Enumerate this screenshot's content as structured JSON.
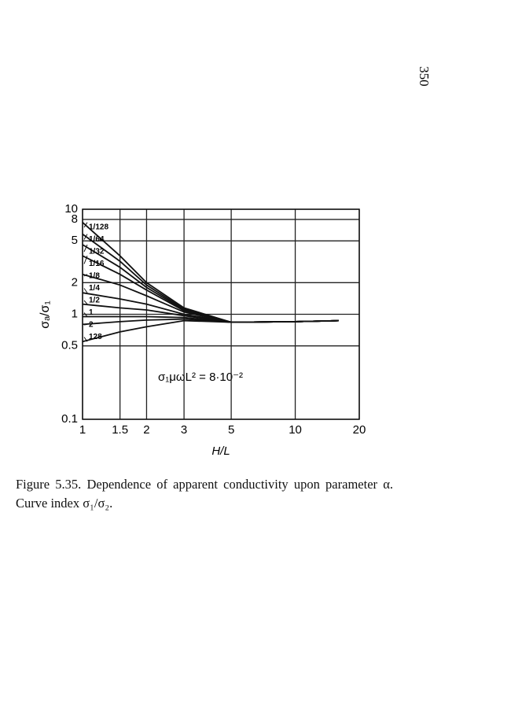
{
  "page_number": "350",
  "caption": "Figure 5.35. Dependence of apparent conductivity upon parameter α. Curve index σ₁/σ₂.",
  "chart_data": {
    "type": "line",
    "annotation": "σ₁μωL² = 8·10⁻²",
    "x_label": "H/L",
    "y_label": "σₐ/σ₁",
    "log_x": true,
    "log_y": true,
    "grid": true,
    "color": "#111111",
    "xlim": [
      1,
      20
    ],
    "ylim": [
      0.1,
      10
    ],
    "xticks": [
      1,
      1.5,
      2,
      3,
      5,
      10,
      20
    ],
    "yticks": [
      0.1,
      0.5,
      1,
      2,
      5,
      8,
      10
    ],
    "x": [
      1,
      1.5,
      2,
      3,
      5,
      10,
      16
    ],
    "series": [
      {
        "name": "1/128",
        "values": [
          7.5,
          3.6,
          2.0,
          1.15,
          0.84,
          0.85,
          0.87
        ]
      },
      {
        "name": "1/64",
        "values": [
          5.8,
          3.2,
          1.9,
          1.12,
          0.84,
          0.85,
          0.87
        ]
      },
      {
        "name": "1/32",
        "values": [
          4.6,
          2.8,
          1.8,
          1.1,
          0.84,
          0.85,
          0.87
        ]
      },
      {
        "name": "1/16",
        "values": [
          3.6,
          2.4,
          1.7,
          1.08,
          0.84,
          0.85,
          0.87
        ]
      },
      {
        "name": "1/8",
        "values": [
          2.4,
          1.9,
          1.5,
          1.05,
          0.84,
          0.85,
          0.87
        ]
      },
      {
        "name": "1/4",
        "values": [
          1.6,
          1.4,
          1.25,
          1.0,
          0.84,
          0.85,
          0.87
        ]
      },
      {
        "name": "1/2",
        "values": [
          1.25,
          1.15,
          1.1,
          0.97,
          0.84,
          0.85,
          0.87
        ]
      },
      {
        "name": "1",
        "values": [
          0.95,
          0.95,
          0.95,
          0.93,
          0.84,
          0.85,
          0.87
        ]
      },
      {
        "name": "2",
        "values": [
          0.8,
          0.85,
          0.88,
          0.9,
          0.84,
          0.85,
          0.87
        ]
      },
      {
        "name": "128",
        "values": [
          0.55,
          0.68,
          0.76,
          0.87,
          0.84,
          0.85,
          0.87
        ]
      }
    ]
  }
}
